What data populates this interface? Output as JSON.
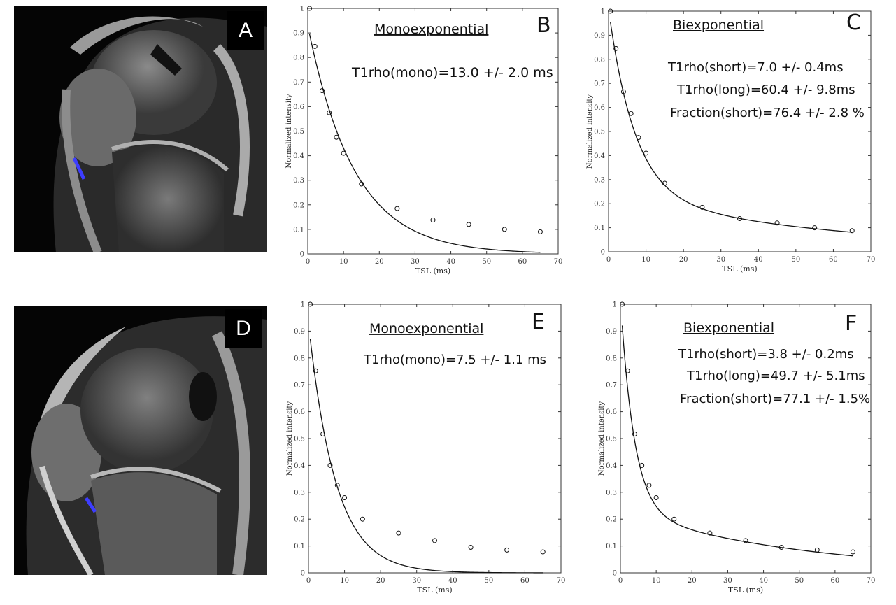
{
  "panels": {
    "A": {
      "letter": "A",
      "roi_color": "#3d3dff"
    },
    "D": {
      "letter": "D",
      "roi_color": "#3d3dff"
    }
  },
  "chart_data": [
    {
      "id": "B",
      "type": "scatter",
      "panel_letter": "B",
      "heading": "Monoexponential",
      "annotations": [
        "T1rho(mono)=13.0 +/- 2.0 ms"
      ],
      "xlabel": "TSL (ms)",
      "ylabel": "Normalized intensity",
      "xlim": [
        0,
        70
      ],
      "ylim": [
        0,
        1
      ],
      "xticks": [
        0,
        10,
        20,
        30,
        40,
        50,
        60,
        70
      ],
      "yticks": [
        0,
        0.1,
        0.2,
        0.3,
        0.4,
        0.5,
        0.6,
        0.7,
        0.8,
        0.9,
        1
      ],
      "x": [
        0.5,
        2,
        4,
        6,
        8,
        10,
        15,
        25,
        35,
        45,
        55,
        65
      ],
      "y": [
        1.0,
        0.845,
        0.665,
        0.575,
        0.475,
        0.41,
        0.285,
        0.185,
        0.138,
        0.12,
        0.1,
        0.09
      ],
      "fit": {
        "model": "mono",
        "A": 0.93,
        "T": 13.0
      }
    },
    {
      "id": "C",
      "type": "scatter",
      "panel_letter": "C",
      "heading": "Biexponential",
      "annotations": [
        "T1rho(short)=7.0 +/- 0.4ms",
        "T1rho(long)=60.4 +/- 9.8ms",
        "Fraction(short)=76.4 +/- 2.8 %"
      ],
      "xlabel": "TSL (ms)",
      "ylabel": "Normalized intensity",
      "xlim": [
        0,
        70
      ],
      "ylim": [
        0,
        1
      ],
      "xticks": [
        0,
        10,
        20,
        30,
        40,
        50,
        60,
        70
      ],
      "yticks": [
        0,
        0.1,
        0.2,
        0.3,
        0.4,
        0.5,
        0.6,
        0.7,
        0.8,
        0.9,
        1
      ],
      "x": [
        0.5,
        2,
        4,
        6,
        8,
        10,
        15,
        25,
        35,
        45,
        55,
        65
      ],
      "y": [
        1.0,
        0.845,
        0.665,
        0.575,
        0.475,
        0.41,
        0.285,
        0.185,
        0.138,
        0.12,
        0.1,
        0.088
      ],
      "fit": {
        "model": "bi",
        "A": 1.01,
        "f": 0.764,
        "Ts": 7.0,
        "Tl": 60.4
      }
    },
    {
      "id": "E",
      "type": "scatter",
      "panel_letter": "E",
      "heading": "Monoexponential",
      "annotations": [
        "T1rho(mono)=7.5 +/- 1.1 ms"
      ],
      "xlabel": "TSL (ms)",
      "ylabel": "Normalized intensity",
      "xlim": [
        0,
        70
      ],
      "ylim": [
        0,
        1
      ],
      "xticks": [
        0,
        10,
        20,
        30,
        40,
        50,
        60,
        70
      ],
      "yticks": [
        0,
        0.1,
        0.2,
        0.3,
        0.4,
        0.5,
        0.6,
        0.7,
        0.8,
        0.9,
        1
      ],
      "x": [
        0.5,
        2,
        4,
        6,
        8,
        10,
        15,
        25,
        35,
        45,
        55,
        65
      ],
      "y": [
        1.0,
        0.752,
        0.517,
        0.4,
        0.326,
        0.28,
        0.2,
        0.148,
        0.12,
        0.095,
        0.085,
        0.078
      ],
      "fit": {
        "model": "mono",
        "A": 0.93,
        "T": 7.5
      }
    },
    {
      "id": "F",
      "type": "scatter",
      "panel_letter": "F",
      "heading": "Biexponential",
      "annotations": [
        "T1rho(short)=3.8 +/- 0.2ms",
        "T1rho(long)=49.7 +/- 5.1ms",
        "Fraction(short)=77.1 +/- 1.5%"
      ],
      "xlabel": "TSL (ms)",
      "ylabel": "Normalized intensity",
      "xlim": [
        0,
        70
      ],
      "ylim": [
        0,
        1
      ],
      "xticks": [
        0,
        10,
        20,
        30,
        40,
        50,
        60,
        70
      ],
      "yticks": [
        0,
        0.1,
        0.2,
        0.3,
        0.4,
        0.5,
        0.6,
        0.7,
        0.8,
        0.9,
        1
      ],
      "x": [
        0.5,
        2,
        4,
        6,
        8,
        10,
        15,
        25,
        35,
        45,
        55,
        65
      ],
      "y": [
        1.0,
        0.752,
        0.517,
        0.4,
        0.326,
        0.28,
        0.2,
        0.148,
        0.12,
        0.095,
        0.085,
        0.078
      ],
      "fit": {
        "model": "bi",
        "A": 1.02,
        "f": 0.771,
        "Ts": 3.8,
        "Tl": 49.7
      }
    }
  ]
}
